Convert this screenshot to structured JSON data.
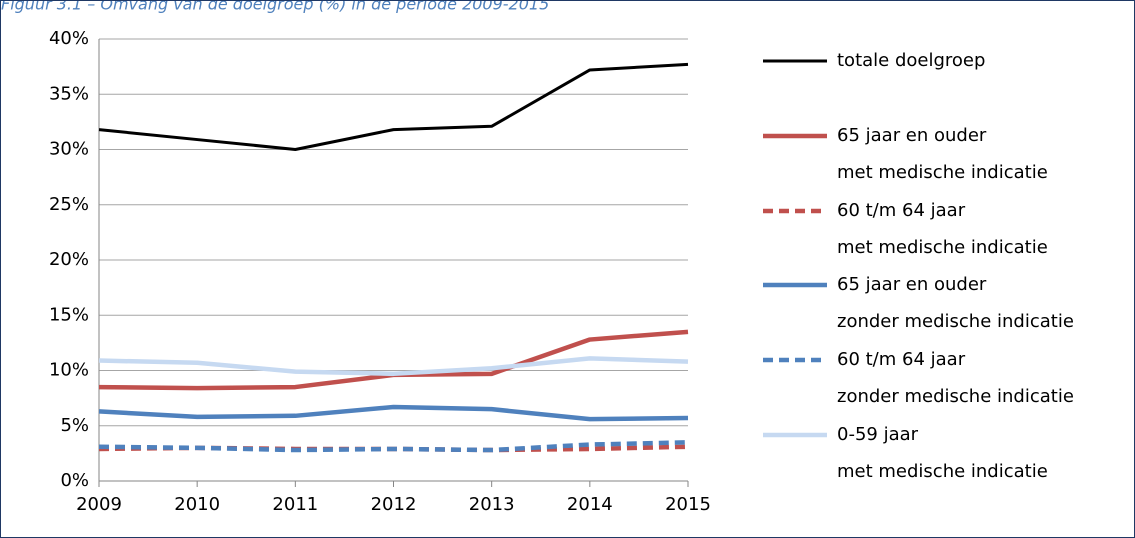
{
  "chart_data": {
    "type": "line",
    "title": "Figuur 3.1 – Omvang van de doelgroep (%) in de periode 2009-2015",
    "x": [
      2009,
      2010,
      2011,
      2012,
      2013,
      2014,
      2015
    ],
    "xlim": [
      2009,
      2015
    ],
    "ylim": [
      0,
      40
    ],
    "yticks": [
      {
        "value": 0,
        "label": "0%"
      },
      {
        "value": 5,
        "label": "5%"
      },
      {
        "value": 10,
        "label": "10%"
      },
      {
        "value": 15,
        "label": "15%"
      },
      {
        "value": 20,
        "label": "20%"
      },
      {
        "value": 25,
        "label": "25%"
      },
      {
        "value": 30,
        "label": "30%"
      },
      {
        "value": 35,
        "label": "35%"
      },
      {
        "value": 40,
        "label": "40%"
      }
    ],
    "grid": true,
    "legend": "right",
    "series": [
      {
        "name": "totale doelgroep",
        "color": "#000000",
        "dash": false,
        "values": [
          31.8,
          30.9,
          30.0,
          31.8,
          32.1,
          37.2,
          37.7
        ]
      },
      {
        "name": "65 jaar en ouder\nmet medische indicatie",
        "color": "#c0504d",
        "dash": false,
        "values": [
          8.5,
          8.4,
          8.5,
          9.6,
          9.7,
          12.8,
          13.5
        ]
      },
      {
        "name": "60 t/m 64 jaar\nmet medische indicatie",
        "color": "#c0504d",
        "dash": true,
        "values": [
          2.9,
          3.0,
          2.9,
          2.9,
          2.8,
          2.9,
          3.1
        ]
      },
      {
        "name": "65 jaar en ouder\nzonder medische indicatie",
        "color": "#4f81bd",
        "dash": false,
        "values": [
          6.3,
          5.8,
          5.9,
          6.7,
          6.5,
          5.6,
          5.7
        ]
      },
      {
        "name": "60 t/m 64 jaar\nzonder medische indicatie",
        "color": "#4f81bd",
        "dash": true,
        "values": [
          3.1,
          3.0,
          2.8,
          2.9,
          2.8,
          3.3,
          3.5
        ]
      },
      {
        "name": "0-59 jaar\nmet medische indicatie",
        "color": "#c6d9f1",
        "dash": false,
        "values": [
          10.9,
          10.7,
          9.9,
          9.7,
          10.2,
          11.1,
          10.8
        ]
      }
    ]
  }
}
